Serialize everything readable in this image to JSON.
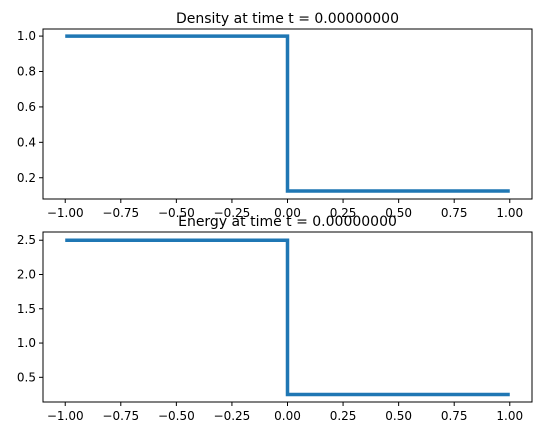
{
  "chart_data": [
    {
      "type": "line",
      "title": "Density at time t =      0.00000000",
      "xlabel": "",
      "ylabel": "",
      "xlim": [
        -1.1,
        1.1
      ],
      "ylim": [
        0.08,
        1.04
      ],
      "xticks": [
        -1.0,
        -0.75,
        -0.5,
        -0.25,
        0.0,
        0.25,
        0.5,
        0.75,
        1.0
      ],
      "xtick_labels": [
        "−1.00",
        "−0.75",
        "−0.50",
        "−0.25",
        "0.00",
        "0.25",
        "0.50",
        "0.75",
        "1.00"
      ],
      "yticks": [
        0.2,
        0.4,
        0.6,
        0.8,
        1.0
      ],
      "ytick_labels": [
        "0.2",
        "0.4",
        "0.6",
        "0.8",
        "1.0"
      ],
      "grid": false,
      "color": "#1f77b4",
      "x": [
        -1.0,
        0.0,
        0.0,
        1.0
      ],
      "y": [
        1.0,
        1.0,
        0.125,
        0.125
      ]
    },
    {
      "type": "line",
      "title": "Energy at time t =      0.00000000",
      "xlabel": "",
      "ylabel": "",
      "xlim": [
        -1.1,
        1.1
      ],
      "ylim": [
        0.14,
        2.62
      ],
      "xticks": [
        -1.0,
        -0.75,
        -0.5,
        -0.25,
        0.0,
        0.25,
        0.5,
        0.75,
        1.0
      ],
      "xtick_labels": [
        "−1.00",
        "−0.75",
        "−0.50",
        "−0.25",
        "0.00",
        "0.25",
        "0.50",
        "0.75",
        "1.00"
      ],
      "yticks": [
        0.5,
        1.0,
        1.5,
        2.0,
        2.5
      ],
      "ytick_labels": [
        "0.5",
        "1.0",
        "1.5",
        "2.0",
        "2.5"
      ],
      "grid": false,
      "color": "#1f77b4",
      "x": [
        -1.0,
        0.0,
        0.0,
        1.0
      ],
      "y": [
        2.5,
        2.5,
        0.25,
        0.25
      ]
    }
  ]
}
